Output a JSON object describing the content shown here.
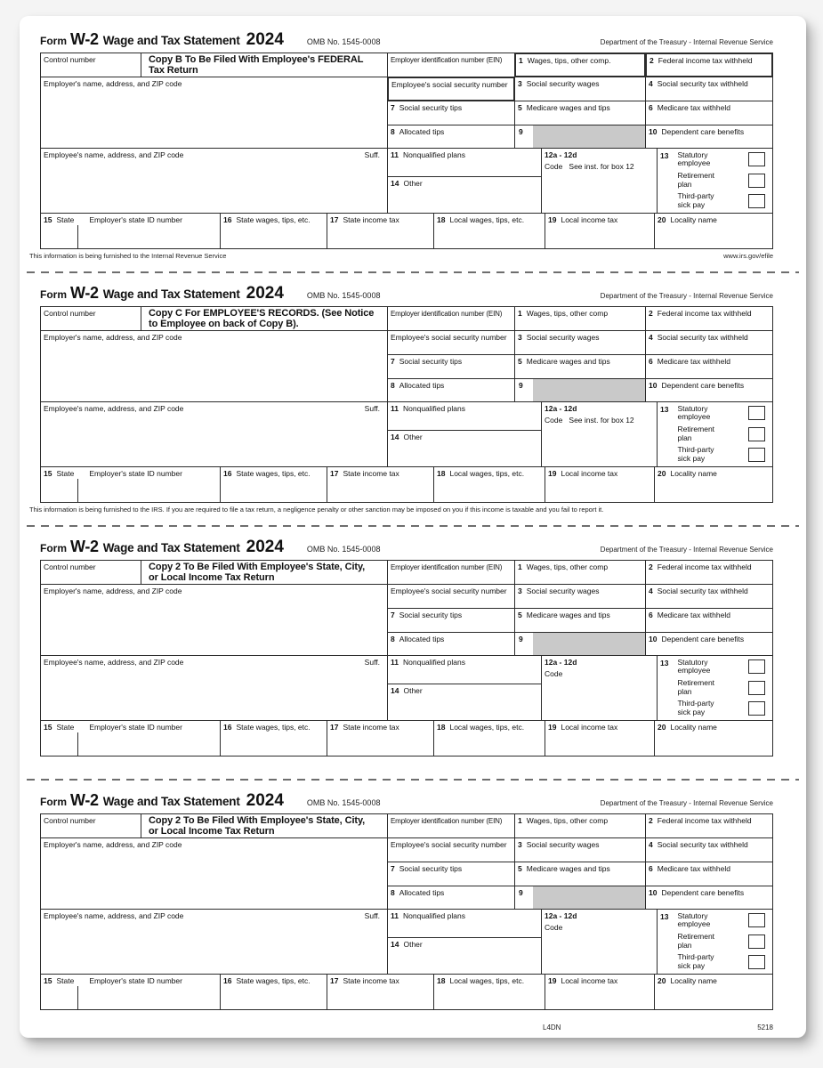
{
  "page": {
    "background_color": "#f4f4f4",
    "paper_color": "#ffffff",
    "shaded_box_color": "#c9c9c9",
    "line_color": "#2b2b2b"
  },
  "header": {
    "form_word": "Form",
    "form_number": "W-2",
    "form_title": "Wage and Tax Statement",
    "year": "2024",
    "omb": "OMB No. 1545-0008",
    "department": "Department of the Treasury - Internal Revenue Service"
  },
  "boxes": {
    "control": "Control number",
    "ein": "Employer identification number (EIN)",
    "employer_address": "Employer's name, address, and ZIP code",
    "ssn": "Employee's social security number",
    "employee_address": "Employee's name, address, and ZIP code",
    "suffix": "Suff.",
    "b2": {
      "no": "2",
      "text": "Federal income tax withheld"
    },
    "b3": {
      "no": "3",
      "text": "Social security wages"
    },
    "b4": {
      "no": "4",
      "text": "Social security tax withheld"
    },
    "b5": {
      "no": "5",
      "text": "Medicare wages and tips"
    },
    "b6": {
      "no": "6",
      "text": "Medicare tax withheld"
    },
    "b7": {
      "no": "7",
      "text": "Social security tips"
    },
    "b8": {
      "no": "8",
      "text": "Allocated tips"
    },
    "b9": {
      "no": "9"
    },
    "b10": {
      "no": "10",
      "text": "Dependent care benefits"
    },
    "b11": {
      "no": "11",
      "text": "Nonqualified plans"
    },
    "b12": {
      "no": "12a - 12d"
    },
    "b13": {
      "no": "13"
    },
    "b13_statutory": "Statutory employee",
    "b13_retirement": "Retirement plan",
    "b13_sickpay": "Third-party sick pay",
    "b14": {
      "no": "14",
      "text": "Other"
    },
    "b15": {
      "no": "15",
      "state": "State",
      "id": "Employer's state ID number"
    },
    "b16": {
      "no": "16",
      "text": "State wages, tips, etc."
    },
    "b17": {
      "no": "17",
      "text": "State income tax"
    },
    "b18": {
      "no": "18",
      "text": "Local wages, tips, etc."
    },
    "b19": {
      "no": "19",
      "text": "Local income tax"
    },
    "b20": {
      "no": "20",
      "text": "Locality name"
    }
  },
  "forms": [
    {
      "copy_title": "Copy B To Be Filed With Employee's FEDERAL Tax Return",
      "box1": {
        "no": "1",
        "text": "Wages, tips, other comp."
      },
      "box12_note": "Code   See inst. for box 12",
      "footer_left": "This information is being furnished to the Internal Revenue Service",
      "footer_right": "www.irs.gov/efile",
      "highlight_key_boxes": true
    },
    {
      "copy_title": "Copy C For EMPLOYEE'S RECORDS. (See Notice to Employee on back of Copy B).",
      "box1": {
        "no": "1",
        "text": "Wages, tips, other comp"
      },
      "box12_note": "Code   See inst. for box 12",
      "footer_left": "This information is being furnished to the IRS.  If you are required to file a tax return, a negligence penalty or other sanction may be imposed on you if this income is taxable and you fail to report it.",
      "footer_right": "",
      "highlight_key_boxes": false
    },
    {
      "copy_title": "Copy 2 To Be Filed With Employee's State, City, or Local Income Tax Return",
      "box1": {
        "no": "1",
        "text": "Wages, tips, other comp"
      },
      "box12_note": "Code",
      "footer_left": "",
      "footer_right": "",
      "highlight_key_boxes": false
    },
    {
      "copy_title": "Copy 2 To Be Filed With Employee's State, City, or Local Income Tax Return",
      "box1": {
        "no": "1",
        "text": "Wages, tips, other comp"
      },
      "box12_note": "Code",
      "footer_left": "",
      "footer_right": "",
      "highlight_key_boxes": false
    }
  ],
  "footer_codes": {
    "left_code": "L4DN",
    "right_code": "5218"
  }
}
